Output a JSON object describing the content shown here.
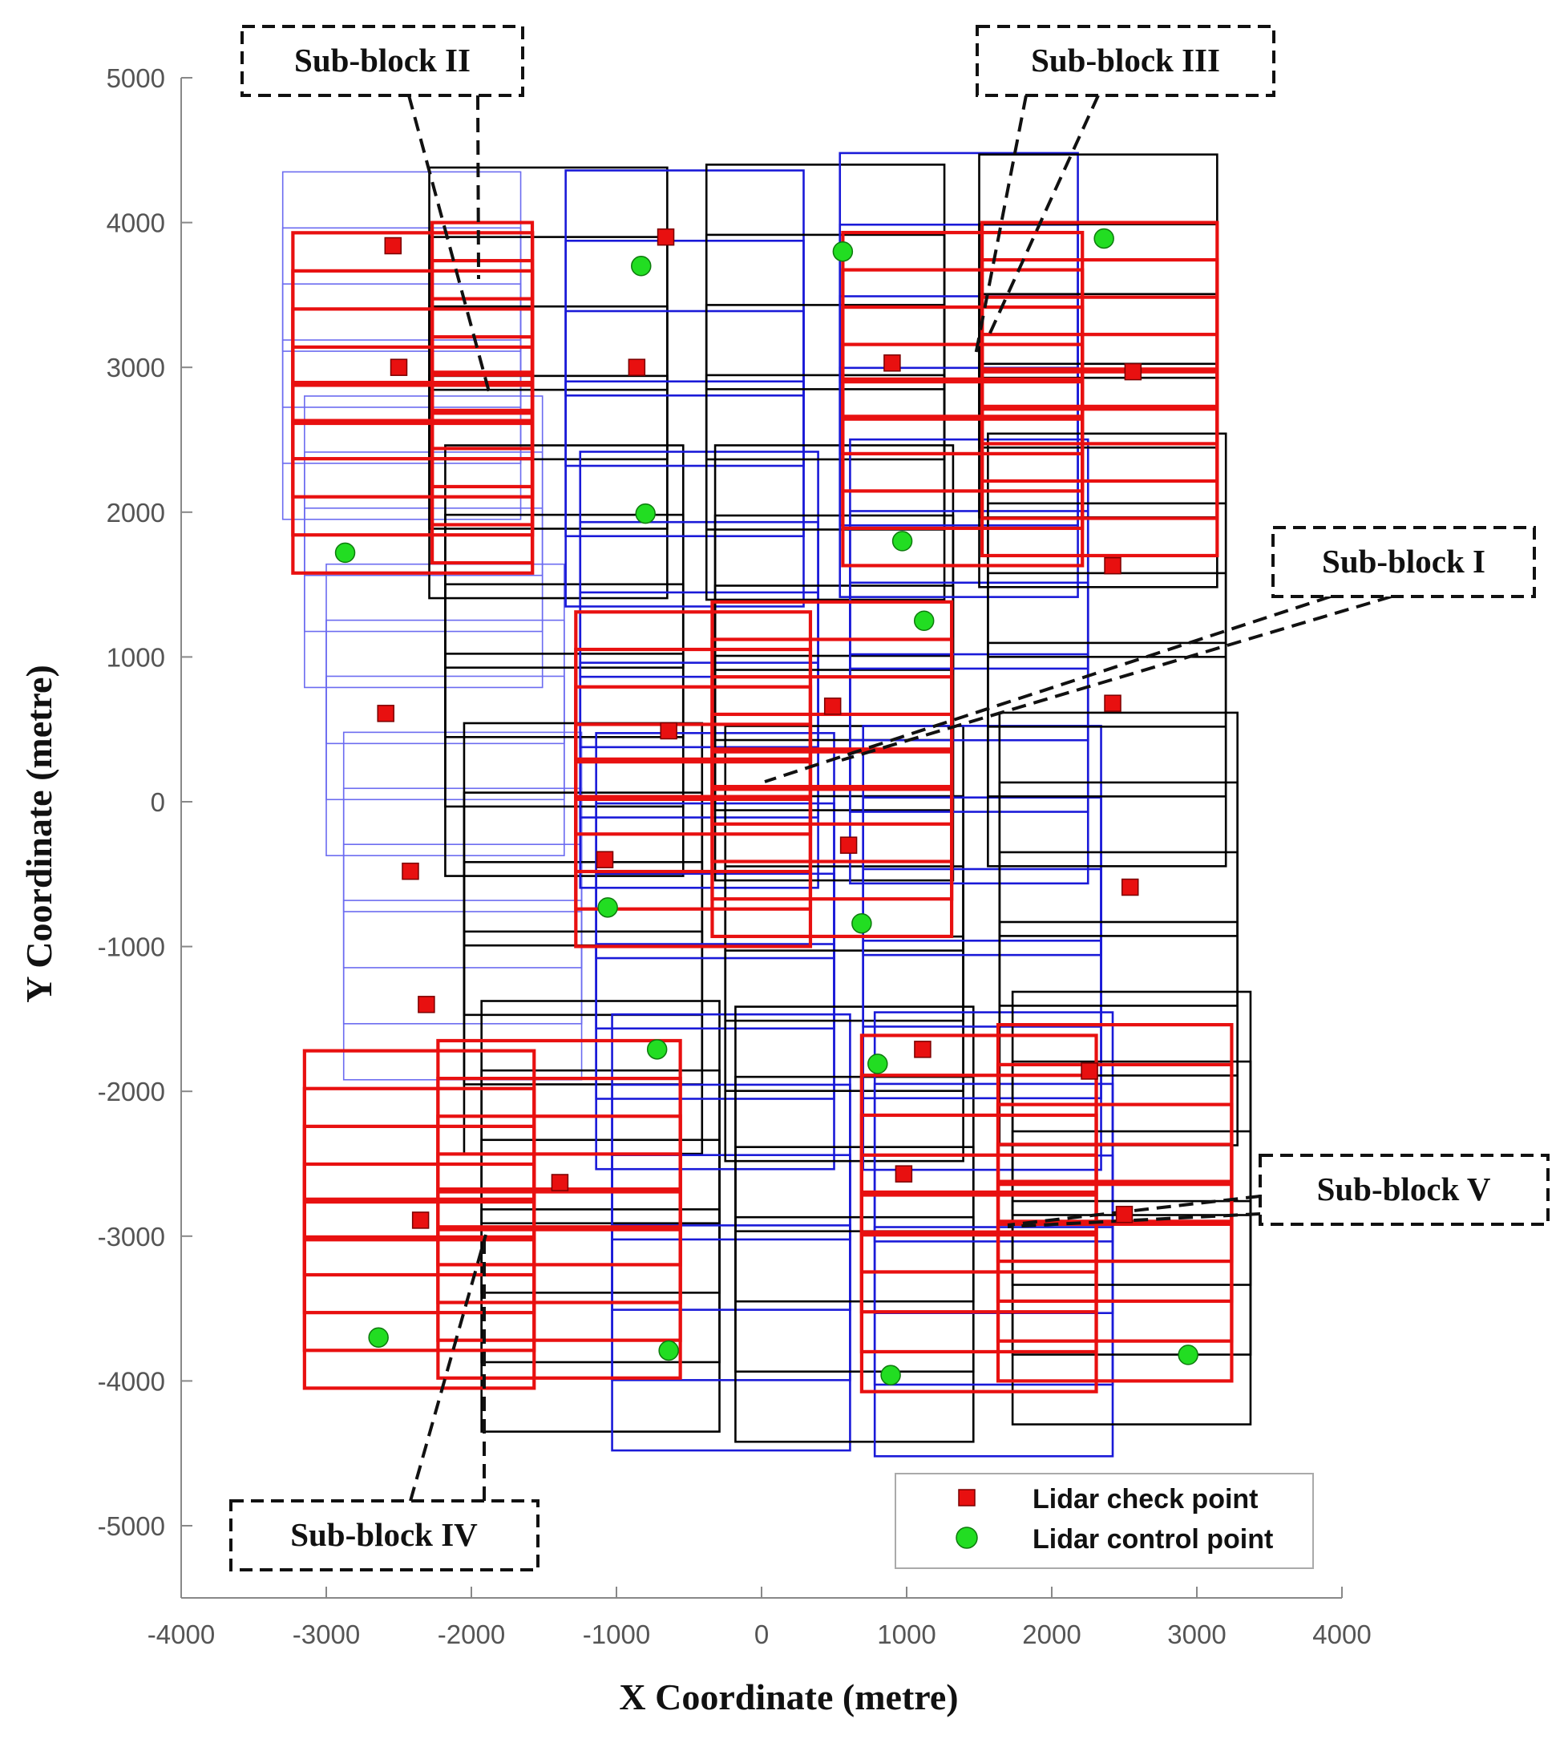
{
  "chart_data": {
    "type": "scatter",
    "title": "",
    "xlabel": "X Coordinate (metre)",
    "ylabel": "Y Coordinate (metre)",
    "xlim": [
      -4000,
      4000
    ],
    "ylim": [
      -5500,
      5000
    ],
    "xticks": [
      -4000,
      -3000,
      -2000,
      -1000,
      0,
      1000,
      2000,
      3000,
      4000
    ],
    "yticks": [
      5000,
      4000,
      3000,
      2000,
      1000,
      0,
      -1000,
      -2000,
      -3000,
      -4000,
      -5000
    ],
    "grid": false,
    "legend": {
      "position": "bottom-right",
      "entries": [
        {
          "label": "Lidar check point",
          "marker": "square",
          "color": "#e81010"
        },
        {
          "label": "Lidar control point",
          "marker": "circle",
          "color": "#22dd22"
        }
      ]
    },
    "series": [
      {
        "name": "Lidar check point",
        "color": "#e81010",
        "points": [
          [
            -2540,
            3840
          ],
          [
            -2500,
            3000
          ],
          [
            -660,
            3900
          ],
          [
            -860,
            3000
          ],
          [
            900,
            3030
          ],
          [
            2560,
            2970
          ],
          [
            2420,
            1630
          ],
          [
            2420,
            680
          ],
          [
            -2590,
            610
          ],
          [
            -640,
            490
          ],
          [
            490,
            660
          ],
          [
            600,
            -300
          ],
          [
            -1080,
            -400
          ],
          [
            2540,
            -590
          ],
          [
            -2420,
            -480
          ],
          [
            -2310,
            -1400
          ],
          [
            1110,
            -1710
          ],
          [
            2260,
            -1860
          ],
          [
            980,
            -2570
          ],
          [
            -1390,
            -2630
          ],
          [
            -2350,
            -2890
          ],
          [
            2500,
            -2850
          ]
        ]
      },
      {
        "name": "Lidar control point",
        "color": "#22dd22",
        "points": [
          [
            -830,
            3700
          ],
          [
            560,
            3800
          ],
          [
            2360,
            3890
          ],
          [
            -2870,
            1720
          ],
          [
            -800,
            1990
          ],
          [
            970,
            1800
          ],
          [
            1120,
            1250
          ],
          [
            -1060,
            -730
          ],
          [
            690,
            -840
          ],
          [
            -720,
            -1710
          ],
          [
            800,
            -1810
          ],
          [
            -2640,
            -3700
          ],
          [
            -640,
            -3790
          ],
          [
            890,
            -3960
          ],
          [
            2940,
            -3820
          ]
        ]
      }
    ],
    "annotations": [
      {
        "id": "sub-block-I",
        "text": "Sub-block I"
      },
      {
        "id": "sub-block-II",
        "text": "Sub-block II"
      },
      {
        "id": "sub-block-III",
        "text": "Sub-block III"
      },
      {
        "id": "sub-block-IV",
        "text": "Sub-block IV"
      },
      {
        "id": "sub-block-V",
        "text": "Sub-block V"
      }
    ],
    "strips": [
      {
        "name": "strip-1",
        "color": "#6b6bf0",
        "width": "thin",
        "x0": -3260,
        "x1": -1620,
        "y_top": 4350,
        "y_bottom": -1920,
        "offsets": [
          -3300,
          -3150,
          -3000,
          -2880
        ],
        "rows": 14
      },
      {
        "name": "strip-2",
        "color": "#000000",
        "width": "thick",
        "x0": -2290,
        "x1": -650,
        "y_top": 4380,
        "y_bottom": -4350,
        "offsets": [
          -2290,
          -2180,
          -2050,
          -1930
        ],
        "rows": 16
      },
      {
        "name": "strip-3",
        "color": "#1a1ad8",
        "width": "thick",
        "x0": -1350,
        "x1": 290,
        "y_top": 4360,
        "y_bottom": -4480,
        "offsets": [
          -1350,
          -1250,
          -1140,
          -1030
        ],
        "rows": 16
      },
      {
        "name": "strip-4",
        "color": "#000000",
        "width": "thick",
        "x0": -380,
        "x1": 1260,
        "y_top": 4400,
        "y_bottom": -4420,
        "offsets": [
          -380,
          -320,
          -250,
          -180
        ],
        "rows": 16
      },
      {
        "name": "strip-5",
        "color": "#1a1ad8",
        "width": "thick",
        "x0": 540,
        "x1": 2180,
        "y_top": 4480,
        "y_bottom": -4520,
        "offsets": [
          540,
          610,
          700,
          780
        ],
        "rows": 16
      },
      {
        "name": "strip-6",
        "color": "#000000",
        "width": "thick",
        "x0": 1500,
        "x1": 3140,
        "y_top": 4470,
        "y_bottom": -4300,
        "offsets": [
          1500,
          1560,
          1640,
          1730
        ],
        "rows": 16
      }
    ],
    "sub_blocks": [
      {
        "name": "sub-block-II",
        "x0": -3230,
        "x1": -1580,
        "y_top": 4000,
        "y_bottom": 1650,
        "offset_right": -2270
      },
      {
        "name": "sub-block-III",
        "x0": 560,
        "x1": 3140,
        "y_top": 4000,
        "y_bottom": 1700,
        "offset_right": 1520
      },
      {
        "name": "sub-block-I",
        "x0": -1280,
        "x1": 1310,
        "y_top": 1380,
        "y_bottom": -930,
        "offset_right": -340
      },
      {
        "name": "sub-block-IV",
        "x0": -3150,
        "x1": -560,
        "y_top": -1650,
        "y_bottom": -3980,
        "offset_right": -2230
      },
      {
        "name": "sub-block-V",
        "x0": 690,
        "x1": 3240,
        "y_top": -1540,
        "y_bottom": -4000,
        "offset_right": 1630
      }
    ]
  }
}
